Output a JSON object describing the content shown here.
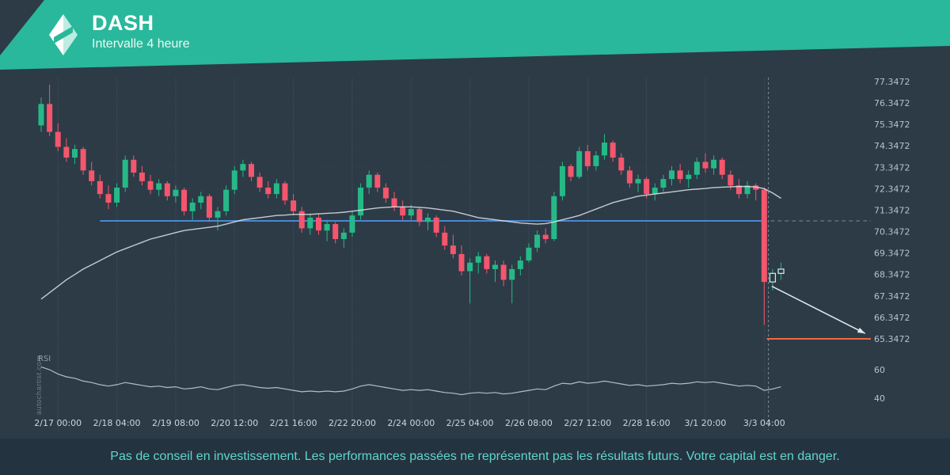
{
  "header": {
    "title": "DASH",
    "subtitle": "Intervalle 4 heure",
    "brand_color": "#29b89b"
  },
  "watermark": "autochartist.com",
  "footer": {
    "disclaimer": "Pas de conseil en investissement. Les performances passées ne représentent pas les résultats futurs. Votre capital est en danger.",
    "text_color": "#5fd6cd"
  },
  "chart_data": {
    "type": "candlestick",
    "symbol": "DASH",
    "interval": "4h",
    "y_axis": {
      "labels": [
        "77.3472",
        "76.3472",
        "75.3472",
        "74.3472",
        "73.3472",
        "72.3472",
        "71.3472",
        "70.3472",
        "69.3472",
        "68.3472",
        "67.3472",
        "66.3472",
        "65.3472"
      ],
      "max": 77.3472,
      "min": 65.3472
    },
    "rsi_axis": {
      "labels": [
        "60",
        "40"
      ]
    },
    "x_ticks": [
      {
        "label": "2/17 00:00",
        "i": 2
      },
      {
        "label": "2/18 04:00",
        "i": 9
      },
      {
        "label": "2/19 08:00",
        "i": 16
      },
      {
        "label": "2/20 12:00",
        "i": 23
      },
      {
        "label": "2/21 16:00",
        "i": 30
      },
      {
        "label": "2/22 20:00",
        "i": 37
      },
      {
        "label": "2/24 00:00",
        "i": 44
      },
      {
        "label": "2/25 04:00",
        "i": 51
      },
      {
        "label": "2/26 08:00",
        "i": 58
      },
      {
        "label": "2/27 12:00",
        "i": 65
      },
      {
        "label": "2/28 16:00",
        "i": 72
      },
      {
        "label": "3/1 20:00",
        "i": 79
      },
      {
        "label": "3/3 04:00",
        "i": 86
      }
    ],
    "candles": [
      [
        75.3,
        76.6,
        75.0,
        76.3
      ],
      [
        76.3,
        77.2,
        74.8,
        75.0
      ],
      [
        75.0,
        75.4,
        74.1,
        74.3
      ],
      [
        74.3,
        74.7,
        73.6,
        73.8
      ],
      [
        73.8,
        74.4,
        73.5,
        74.2
      ],
      [
        74.2,
        74.3,
        73.0,
        73.2
      ],
      [
        73.2,
        73.6,
        72.5,
        72.7
      ],
      [
        72.7,
        73.0,
        71.9,
        72.1
      ],
      [
        72.1,
        72.5,
        71.4,
        71.7
      ],
      [
        71.7,
        72.6,
        71.5,
        72.4
      ],
      [
        72.4,
        73.9,
        72.2,
        73.7
      ],
      [
        73.7,
        73.9,
        72.9,
        73.1
      ],
      [
        73.1,
        73.4,
        72.5,
        72.7
      ],
      [
        72.7,
        73.0,
        72.1,
        72.3
      ],
      [
        72.3,
        72.8,
        72.0,
        72.6
      ],
      [
        72.6,
        72.7,
        71.8,
        72.0
      ],
      [
        72.0,
        72.5,
        71.7,
        72.3
      ],
      [
        72.3,
        72.4,
        71.1,
        71.3
      ],
      [
        71.3,
        71.9,
        70.9,
        71.7
      ],
      [
        71.7,
        72.2,
        71.4,
        72.0
      ],
      [
        72.0,
        72.1,
        70.8,
        71.0
      ],
      [
        71.0,
        71.5,
        70.4,
        71.3
      ],
      [
        71.3,
        72.5,
        71.1,
        72.3
      ],
      [
        72.3,
        73.4,
        72.1,
        73.2
      ],
      [
        73.2,
        73.7,
        72.9,
        73.5
      ],
      [
        73.5,
        73.6,
        72.7,
        72.9
      ],
      [
        72.9,
        73.1,
        72.2,
        72.4
      ],
      [
        72.4,
        72.7,
        71.9,
        72.1
      ],
      [
        72.1,
        72.8,
        71.9,
        72.6
      ],
      [
        72.6,
        72.7,
        71.6,
        71.8
      ],
      [
        71.8,
        72.1,
        71.1,
        71.3
      ],
      [
        71.3,
        71.5,
        70.3,
        70.5
      ],
      [
        70.5,
        71.2,
        70.2,
        71.0
      ],
      [
        71.0,
        71.2,
        70.2,
        70.4
      ],
      [
        70.4,
        70.9,
        69.9,
        70.7
      ],
      [
        70.7,
        70.8,
        69.8,
        70.0
      ],
      [
        70.0,
        70.5,
        69.6,
        70.3
      ],
      [
        70.3,
        71.3,
        70.1,
        71.1
      ],
      [
        71.1,
        72.6,
        70.9,
        72.4
      ],
      [
        72.4,
        73.2,
        72.1,
        73.0
      ],
      [
        73.0,
        73.1,
        72.2,
        72.4
      ],
      [
        72.4,
        72.6,
        71.7,
        71.9
      ],
      [
        71.9,
        72.2,
        71.3,
        71.5
      ],
      [
        71.5,
        71.8,
        70.9,
        71.1
      ],
      [
        71.1,
        71.6,
        70.9,
        71.4
      ],
      [
        71.4,
        71.5,
        70.6,
        70.8
      ],
      [
        70.8,
        71.2,
        70.4,
        71.0
      ],
      [
        71.0,
        71.1,
        70.1,
        70.3
      ],
      [
        70.3,
        70.6,
        69.5,
        69.7
      ],
      [
        69.7,
        70.2,
        69.1,
        69.3
      ],
      [
        69.3,
        69.7,
        68.3,
        68.5
      ],
      [
        68.5,
        69.1,
        67.0,
        68.9
      ],
      [
        68.9,
        69.4,
        68.4,
        69.2
      ],
      [
        69.2,
        69.3,
        68.4,
        68.6
      ],
      [
        68.6,
        69.0,
        68.0,
        68.8
      ],
      [
        68.8,
        69.0,
        67.8,
        68.1
      ],
      [
        68.1,
        68.8,
        67.0,
        68.6
      ],
      [
        68.6,
        69.2,
        68.3,
        69.0
      ],
      [
        69.0,
        69.8,
        68.9,
        69.6
      ],
      [
        69.6,
        70.4,
        69.4,
        70.2
      ],
      [
        70.2,
        70.5,
        69.8,
        70.0
      ],
      [
        70.0,
        72.2,
        69.9,
        72.0
      ],
      [
        72.0,
        73.6,
        71.8,
        73.4
      ],
      [
        73.4,
        73.5,
        72.7,
        72.9
      ],
      [
        72.9,
        74.3,
        72.8,
        74.1
      ],
      [
        74.1,
        74.4,
        73.2,
        73.4
      ],
      [
        73.4,
        74.1,
        73.2,
        73.9
      ],
      [
        73.9,
        74.9,
        73.7,
        74.5
      ],
      [
        74.5,
        74.6,
        73.6,
        73.8
      ],
      [
        73.8,
        74.0,
        73.0,
        73.2
      ],
      [
        73.2,
        73.4,
        72.4,
        72.6
      ],
      [
        72.6,
        73.0,
        72.2,
        72.8
      ],
      [
        72.8,
        72.9,
        71.9,
        72.1
      ],
      [
        72.1,
        72.6,
        71.8,
        72.4
      ],
      [
        72.4,
        73.0,
        72.2,
        72.8
      ],
      [
        72.8,
        73.4,
        72.5,
        73.2
      ],
      [
        73.2,
        73.5,
        72.6,
        72.8
      ],
      [
        72.8,
        73.2,
        72.4,
        73.0
      ],
      [
        73.0,
        73.8,
        72.8,
        73.6
      ],
      [
        73.6,
        74.0,
        73.1,
        73.3
      ],
      [
        73.3,
        73.9,
        73.0,
        73.7
      ],
      [
        73.7,
        73.8,
        72.8,
        73.0
      ],
      [
        73.0,
        73.2,
        72.3,
        72.5
      ],
      [
        72.5,
        72.8,
        71.9,
        72.1
      ],
      [
        72.1,
        72.7,
        71.9,
        72.5
      ],
      [
        72.5,
        72.6,
        71.8,
        72.3
      ],
      [
        72.3,
        72.4,
        66.0,
        68.0
      ],
      [
        68.0,
        68.6,
        67.6,
        68.4
      ],
      [
        68.4,
        68.9,
        68.1,
        68.6
      ]
    ],
    "hollow_from": 87,
    "ma": [
      67.2,
      67.5,
      67.8,
      68.1,
      68.35,
      68.6,
      68.8,
      69.0,
      69.2,
      69.4,
      69.55,
      69.7,
      69.85,
      70.0,
      70.1,
      70.2,
      70.3,
      70.4,
      70.45,
      70.5,
      70.55,
      70.6,
      70.7,
      70.8,
      70.9,
      70.95,
      71.0,
      71.05,
      71.1,
      71.12,
      71.15,
      71.15,
      71.15,
      71.18,
      71.2,
      71.22,
      71.25,
      71.3,
      71.35,
      71.4,
      71.45,
      71.48,
      71.5,
      71.5,
      71.5,
      71.48,
      71.45,
      71.4,
      71.35,
      71.3,
      71.2,
      71.1,
      71.0,
      70.95,
      70.9,
      70.85,
      70.8,
      70.75,
      70.72,
      70.7,
      70.72,
      70.8,
      70.9,
      71.0,
      71.1,
      71.25,
      71.4,
      71.55,
      71.7,
      71.8,
      71.9,
      72.0,
      72.05,
      72.1,
      72.15,
      72.2,
      72.25,
      72.3,
      72.33,
      72.36,
      72.4,
      72.42,
      72.44,
      72.45,
      72.45,
      72.43,
      72.35,
      72.15,
      71.9
    ],
    "rsi": {
      "label": "RSI",
      "values": [
        62,
        60,
        57,
        55,
        54,
        52,
        51,
        49.5,
        48.5,
        49.5,
        51,
        50,
        49,
        48,
        48.5,
        47.5,
        48,
        46.5,
        47,
        48,
        46.5,
        46,
        47.5,
        49,
        49.5,
        48.5,
        47.5,
        47,
        47.5,
        46.5,
        45.5,
        44.5,
        45,
        44.5,
        45,
        44.5,
        45,
        46.5,
        48.5,
        49.5,
        48.5,
        47.5,
        46.5,
        45.5,
        46,
        45.5,
        46,
        45,
        44,
        43.5,
        42.5,
        43.5,
        44,
        43.5,
        44,
        43,
        43.5,
        44.5,
        45.5,
        46.5,
        46,
        48.5,
        50.5,
        50,
        51.5,
        50.5,
        51,
        52,
        51,
        50,
        49,
        49.5,
        48.5,
        49,
        49.5,
        50.5,
        50,
        50.5,
        51.5,
        51,
        51.5,
        50.5,
        49.5,
        48.5,
        49,
        48.5,
        45.5,
        46.5,
        48
      ]
    },
    "levels": {
      "support": {
        "value": 70.85,
        "color": "#4a86d1",
        "from_i": 7,
        "to_i": 86
      },
      "target": {
        "value": 65.3472,
        "color": "#ee6a41",
        "from_i": 86.3,
        "to_x": 1100
      }
    },
    "annotations": {
      "divider_i": 86.5,
      "arrow": {
        "from": [
          86.9,
          67.8
        ],
        "to": [
          98,
          65.6
        ]
      }
    },
    "colors": {
      "up": "#26b987",
      "down": "#f4566d",
      "ma": "#dfe5e9",
      "rsi": "#ccd4da",
      "grid": "rgba(255,255,255,0.055)",
      "axis_text": "#b6c2ca",
      "time_text": "#ccd6dc"
    }
  }
}
